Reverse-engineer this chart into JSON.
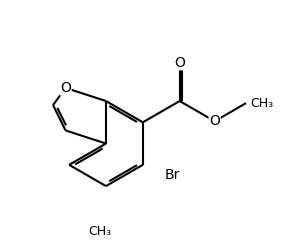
{
  "background_color": "#ffffff",
  "line_color": "#000000",
  "line_width": 1.5,
  "font_size": 10,
  "figsize": [
    3.0,
    2.49
  ],
  "dpi": 100,
  "xlim": [
    0,
    10
  ],
  "ylim": [
    0,
    8.3
  ]
}
